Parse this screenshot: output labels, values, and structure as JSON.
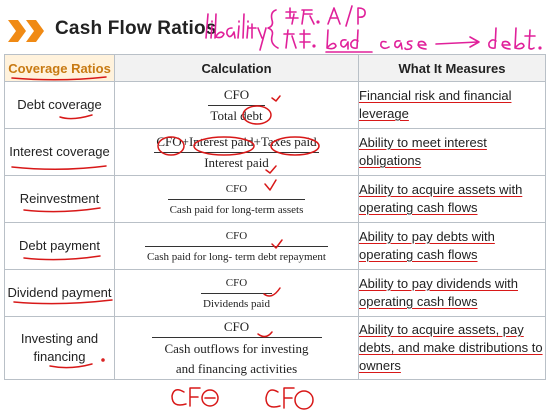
{
  "slide": {
    "title": "Cash Flow Ratios",
    "handwritten_note": "liability { … A/P … bad case → debt."
  },
  "table": {
    "headers": {
      "ratio": "Coverage Ratios",
      "calculation": "Calculation",
      "measures": "What It Measures"
    },
    "rows": [
      {
        "ratio": "Debt coverage",
        "numerator": "CFO",
        "denominator": "Total debt",
        "measures": "Financial risk and financial leverage"
      },
      {
        "ratio": "Interest coverage",
        "numerator": "CFO+Interest paid+Taxes paid",
        "denominator": "Interest paid",
        "measures": "Ability to meet interest obligations"
      },
      {
        "ratio": "Reinvestment",
        "numerator": "CFO",
        "denominator": "Cash paid for long-term assets",
        "measures": "Ability to acquire assets with operating cash flows"
      },
      {
        "ratio": "Debt payment",
        "numerator": "CFO",
        "denominator": "Cash paid for long- term debt repayment",
        "measures": "Ability to pay debts with operating cash flows"
      },
      {
        "ratio": "Dividend payment",
        "numerator": "CFO",
        "denominator": "Dividends paid",
        "measures": "Ability to pay dividends with operating cash flows"
      },
      {
        "ratio": "Investing and financing",
        "numerator": "CFO",
        "denominator": "Cash outflows for investing and financing activities",
        "measures": "Ability to acquire assets, pay debts, and make distributions to owners"
      }
    ]
  },
  "annotations": {
    "bottom_note": "CFO⊖ CFO"
  },
  "colors": {
    "chevron": "#f08a14",
    "header_accent": "#c87a12",
    "ink_red": "#d81818",
    "ink_magenta": "#e0209a"
  }
}
